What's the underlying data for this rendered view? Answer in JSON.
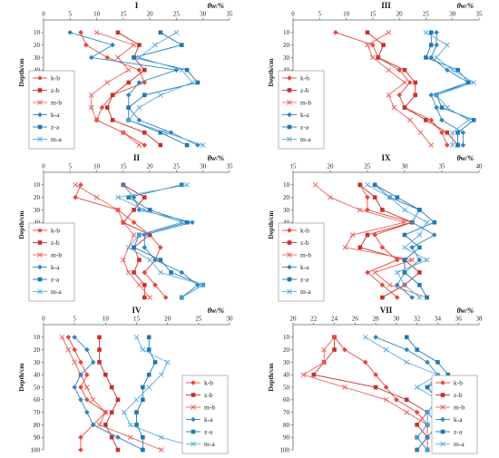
{
  "series_styles": [
    {
      "name": "k-b",
      "color": "#E8463C",
      "marker": "diamond"
    },
    {
      "name": "z-b",
      "color": "#C8302A",
      "marker": "square"
    },
    {
      "name": "m-b",
      "color": "#F0605A",
      "marker": "x"
    },
    {
      "name": "k-a",
      "color": "#2E86C1",
      "marker": "diamond"
    },
    {
      "name": "z-a",
      "color": "#1F78B4",
      "marker": "square"
    },
    {
      "name": "m-a",
      "color": "#5DADE2",
      "marker": "x"
    }
  ],
  "chart_data": [
    {
      "type": "line",
      "title": "I",
      "xlabel": "θw/%",
      "ylabel": "Depth/cm",
      "xlim": [
        0,
        35
      ],
      "xticks": [
        0,
        5,
        10,
        15,
        20,
        25,
        30,
        35
      ],
      "ylim": [
        0,
        100
      ],
      "yticks": [
        10,
        20,
        30,
        40,
        50,
        60,
        70,
        80,
        90,
        100
      ],
      "depths": [
        10,
        20,
        30,
        40,
        50,
        60,
        70,
        80,
        90,
        100
      ],
      "legend": "left",
      "series": [
        {
          "name": "k-b",
          "values": [
            7,
            8,
            12,
            18,
            19,
            13,
            11,
            10,
            15,
            19
          ]
        },
        {
          "name": "z-b",
          "values": [
            14,
            18,
            17,
            19,
            16,
            13,
            12,
            13,
            19,
            22
          ]
        },
        {
          "name": "m-b",
          "values": [
            10,
            17,
            14,
            16,
            12,
            9,
            9,
            10,
            15,
            18
          ]
        },
        {
          "name": "k-a",
          "values": [
            5,
            13,
            9,
            25,
            18,
            16,
            16,
            18,
            24,
            29
          ]
        },
        {
          "name": "z-a",
          "values": [
            22,
            26,
            17,
            27,
            29,
            19,
            16,
            16,
            22,
            27
          ]
        },
        {
          "name": "m-a",
          "values": [
            25,
            21,
            18,
            26,
            28,
            22,
            18,
            16,
            23,
            30
          ]
        }
      ]
    },
    {
      "type": "line",
      "title": "III",
      "xlabel": "θw/%",
      "ylabel": "Depth/cm",
      "xlim": [
        0,
        35
      ],
      "xticks": [
        0,
        5,
        10,
        15,
        20,
        25,
        30,
        35
      ],
      "ylim": [
        0,
        100
      ],
      "yticks": [
        10,
        20,
        30,
        40,
        50,
        60,
        70,
        80,
        90,
        100
      ],
      "depths": [
        10,
        20,
        30,
        40,
        50,
        60,
        70,
        80,
        90,
        100
      ],
      "legend": "left",
      "series": [
        {
          "name": "k-b",
          "values": [
            8,
            15,
            16,
            20,
            22,
            20,
            21,
            26,
            28,
            29
          ]
        },
        {
          "name": "z-b",
          "values": [
            14,
            17,
            16,
            21,
            23,
            23,
            21,
            25,
            29,
            31
          ]
        },
        {
          "name": "m-b",
          "values": [
            18,
            14,
            15,
            18,
            21,
            18,
            19,
            22,
            24,
            26
          ]
        },
        {
          "name": "k-a",
          "values": [
            27,
            27,
            26,
            29,
            33,
            26,
            27,
            28,
            32,
            32
          ]
        },
        {
          "name": "z-a",
          "values": [
            26,
            26,
            25,
            31,
            33,
            27,
            28,
            34,
            31,
            31
          ]
        },
        {
          "name": "m-a",
          "values": [
            25,
            29,
            27,
            30,
            34,
            27,
            29,
            33,
            30,
            30
          ]
        }
      ]
    },
    {
      "type": "line",
      "title": "II",
      "xlabel": "θw/%",
      "ylabel": "Depth/cm",
      "xlim": [
        0,
        35
      ],
      "xticks": [
        0,
        5,
        10,
        15,
        20,
        25,
        30,
        35
      ],
      "ylim": [
        0,
        100
      ],
      "yticks": [
        10,
        20,
        30,
        40,
        50,
        60,
        70,
        80,
        90,
        100
      ],
      "depths": [
        10,
        20,
        30,
        40,
        50,
        60,
        70,
        80,
        90,
        100
      ],
      "legend": "left",
      "series": [
        {
          "name": "k-b",
          "values": [
            7,
            6,
            14,
            17,
            20,
            22,
            21,
            19,
            21,
            23
          ]
        },
        {
          "name": "z-b",
          "values": [
            15,
            19,
            17,
            15,
            20,
            17,
            18,
            17,
            19,
            19
          ]
        },
        {
          "name": "m-b",
          "values": [
            6,
            10,
            14,
            15,
            17,
            16,
            15,
            16,
            18,
            20
          ]
        },
        {
          "name": "k-a",
          "values": [
            15,
            17,
            18,
            28,
            19,
            19,
            21,
            26,
            29,
            26
          ]
        },
        {
          "name": "z-a",
          "values": [
            26,
            16,
            20,
            27,
            18,
            17,
            22,
            24,
            30,
            26
          ]
        },
        {
          "name": "m-a",
          "values": [
            27,
            14,
            19,
            26,
            18,
            16,
            20,
            22,
            30,
            26
          ]
        }
      ]
    },
    {
      "type": "line",
      "title": "IX",
      "xlabel": "θw/%",
      "ylabel": "Depth/cm",
      "xlim": [
        15,
        40
      ],
      "xticks": [
        15,
        20,
        25,
        30,
        35,
        40
      ],
      "ylim": [
        0,
        100
      ],
      "yticks": [
        10,
        20,
        30,
        40,
        50,
        60,
        70,
        80,
        90,
        100
      ],
      "depths": [
        10,
        20,
        30,
        40,
        50,
        60,
        70,
        80,
        90,
        100
      ],
      "legend": "left",
      "series": [
        {
          "name": "k-b",
          "values": [
            24,
            25,
            25,
            31,
            26,
            27,
            29,
            25,
            27,
            29
          ]
        },
        {
          "name": "z-b",
          "values": [
            24,
            26,
            27,
            31,
            25,
            24,
            30,
            32,
            30,
            27
          ]
        },
        {
          "name": "m-b",
          "values": [
            18,
            20,
            24,
            30,
            23,
            22,
            31,
            26,
            28,
            33
          ]
        },
        {
          "name": "k-a",
          "values": [
            26,
            28,
            32,
            31,
            34,
            31,
            32,
            30,
            29,
            31
          ]
        },
        {
          "name": "z-a",
          "values": [
            26,
            29,
            32,
            34,
            30,
            32,
            30,
            30,
            32,
            33
          ]
        },
        {
          "name": "m-a",
          "values": [
            25,
            28,
            30,
            33,
            32,
            30,
            33,
            29,
            30,
            32
          ]
        }
      ]
    },
    {
      "type": "line",
      "title": "IV",
      "xlabel": "θw/%",
      "ylabel": "Depth/cm",
      "xlim": [
        0,
        30
      ],
      "xticks": [
        0,
        5,
        10,
        15,
        20,
        25,
        30
      ],
      "ylim": [
        0,
        100
      ],
      "yticks": [
        10,
        20,
        30,
        40,
        50,
        60,
        70,
        80,
        90,
        100
      ],
      "depths": [
        10,
        20,
        30,
        40,
        50,
        60,
        70,
        80,
        90,
        100
      ],
      "legend": "right",
      "series": [
        {
          "name": "k-b",
          "values": [
            4,
            5,
            6,
            7,
            6,
            7,
            10,
            8,
            6,
            6
          ]
        },
        {
          "name": "z-b",
          "values": [
            9,
            9,
            9,
            10,
            11,
            12,
            11,
            10,
            11,
            12
          ]
        },
        {
          "name": "m-b",
          "values": [
            3,
            4,
            5,
            6,
            7,
            8,
            10,
            9,
            14,
            19
          ]
        },
        {
          "name": "k-a",
          "values": [
            5,
            7,
            8,
            6,
            5,
            6,
            7,
            8,
            12,
            16
          ]
        },
        {
          "name": "z-a",
          "values": [
            17,
            17,
            18,
            17,
            16,
            16,
            15,
            15,
            16,
            16
          ]
        },
        {
          "name": "m-a",
          "values": [
            15,
            16,
            20,
            19,
            17,
            15,
            13,
            14,
            19,
            26
          ]
        }
      ]
    },
    {
      "type": "line",
      "title": "VII",
      "xlabel": "θw/%",
      "ylabel": "Depth/cm",
      "xlim": [
        20,
        38
      ],
      "xticks": [
        20,
        22,
        24,
        26,
        28,
        30,
        32,
        34,
        36,
        38
      ],
      "ylim": [
        0,
        100
      ],
      "yticks": [
        10,
        20,
        30,
        40,
        50,
        60,
        70,
        80,
        90,
        100
      ],
      "depths": [
        10,
        20,
        30,
        40,
        50,
        60,
        70,
        80,
        90,
        100
      ],
      "legend": "right",
      "series": [
        {
          "name": "k-b",
          "values": [
            24,
            25,
            27,
            28,
            29,
            30,
            32,
            33,
            33,
            33
          ]
        },
        {
          "name": "z-b",
          "values": [
            24,
            24,
            23,
            22,
            28,
            31,
            33,
            32,
            33,
            32
          ]
        },
        {
          "name": "m-b",
          "values": [
            24,
            23,
            23,
            21,
            25,
            29,
            31,
            33,
            32,
            33
          ]
        },
        {
          "name": "k-a",
          "values": [
            28,
            31,
            33,
            34,
            33,
            34,
            33,
            34,
            33,
            32
          ]
        },
        {
          "name": "z-a",
          "values": [
            31,
            32,
            34,
            35,
            33,
            34,
            33,
            33,
            32,
            33
          ]
        },
        {
          "name": "m-a",
          "values": [
            27,
            29,
            31,
            34,
            32,
            34,
            33,
            33,
            32,
            33
          ]
        }
      ]
    }
  ]
}
